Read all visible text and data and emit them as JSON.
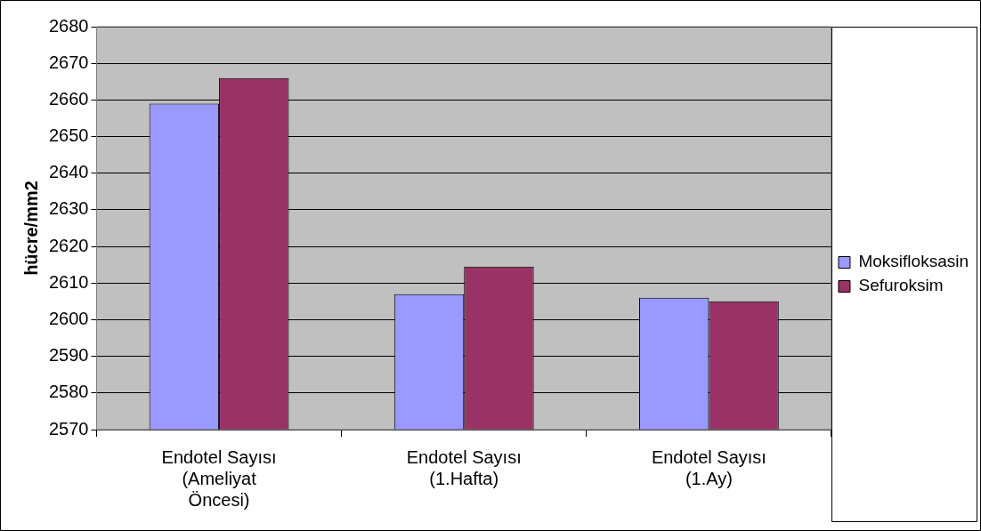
{
  "chart_data": {
    "type": "bar",
    "ylabel": "hücre/mm2",
    "categories": [
      "Endotel Sayısı (Ameliyat Öncesi)",
      "Endotel Sayısı (1.Hafta)",
      "Endotel Sayısı (1.Ay)"
    ],
    "series": [
      {
        "name": "Moksifloksasin",
        "color": "#9999ff",
        "values": [
          2659,
          2607,
          2606
        ]
      },
      {
        "name": "Sefuroksim",
        "color": "#993366",
        "values": [
          2666,
          2614.5,
          2605
        ]
      }
    ],
    "ylim": [
      2570,
      2680
    ],
    "yticks": [
      2570,
      2580,
      2590,
      2600,
      2610,
      2620,
      2630,
      2640,
      2650,
      2660,
      2670,
      2680
    ],
    "grid": "y",
    "legend": "right"
  }
}
